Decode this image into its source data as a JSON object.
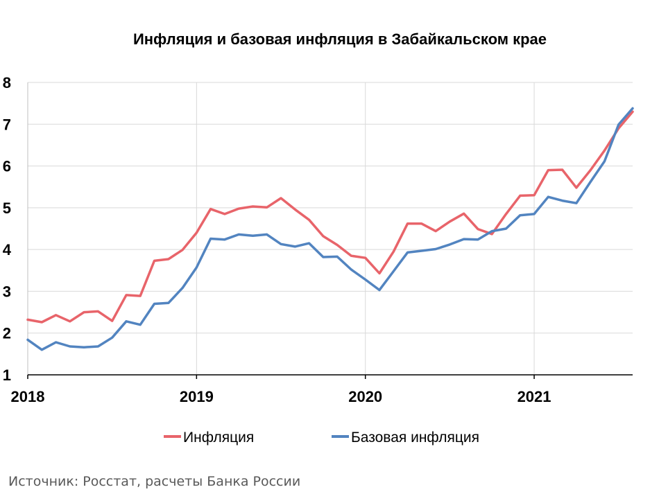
{
  "chart_data": {
    "type": "line",
    "title": "Инфляция и базовая инфляция в Забайкальском крае",
    "xlabel": "",
    "ylabel": "",
    "ylim": [
      1,
      8
    ],
    "yticks": [
      "1",
      "2",
      "3",
      "4",
      "5",
      "6",
      "7",
      "8"
    ],
    "xticks": [
      {
        "label": "2018",
        "index": 0
      },
      {
        "label": "2019",
        "index": 12
      },
      {
        "label": "2020",
        "index": 24
      },
      {
        "label": "2021",
        "index": 36
      }
    ],
    "grid": true,
    "legend_position": "bottom",
    "series": [
      {
        "name": "Инфляция",
        "color": "#e8646a",
        "values": [
          2.32,
          2.26,
          2.43,
          2.28,
          2.5,
          2.52,
          2.29,
          2.91,
          2.89,
          3.73,
          3.77,
          3.99,
          4.4,
          4.97,
          4.85,
          4.98,
          5.03,
          5.01,
          5.23,
          4.96,
          4.71,
          4.32,
          4.11,
          3.85,
          3.8,
          3.43,
          3.95,
          4.62,
          4.62,
          4.44,
          4.67,
          4.86,
          4.49,
          4.37,
          4.85,
          5.29,
          5.3,
          5.9,
          5.91,
          5.48,
          5.9,
          6.37,
          6.9,
          7.3
        ]
      },
      {
        "name": "Базовая инфляция",
        "color": "#5284c0",
        "values": [
          1.84,
          1.6,
          1.78,
          1.68,
          1.66,
          1.68,
          1.89,
          2.28,
          2.2,
          2.7,
          2.72,
          3.08,
          3.57,
          4.26,
          4.24,
          4.36,
          4.33,
          4.36,
          4.13,
          4.07,
          4.15,
          3.82,
          3.83,
          3.52,
          3.28,
          3.03,
          3.48,
          3.93,
          3.97,
          4.01,
          4.12,
          4.25,
          4.24,
          4.44,
          4.5,
          4.82,
          4.85,
          5.26,
          5.17,
          5.11,
          5.62,
          6.11,
          6.99,
          7.38
        ]
      }
    ]
  },
  "source": "Источник: Росстат, расчеты Банка России"
}
